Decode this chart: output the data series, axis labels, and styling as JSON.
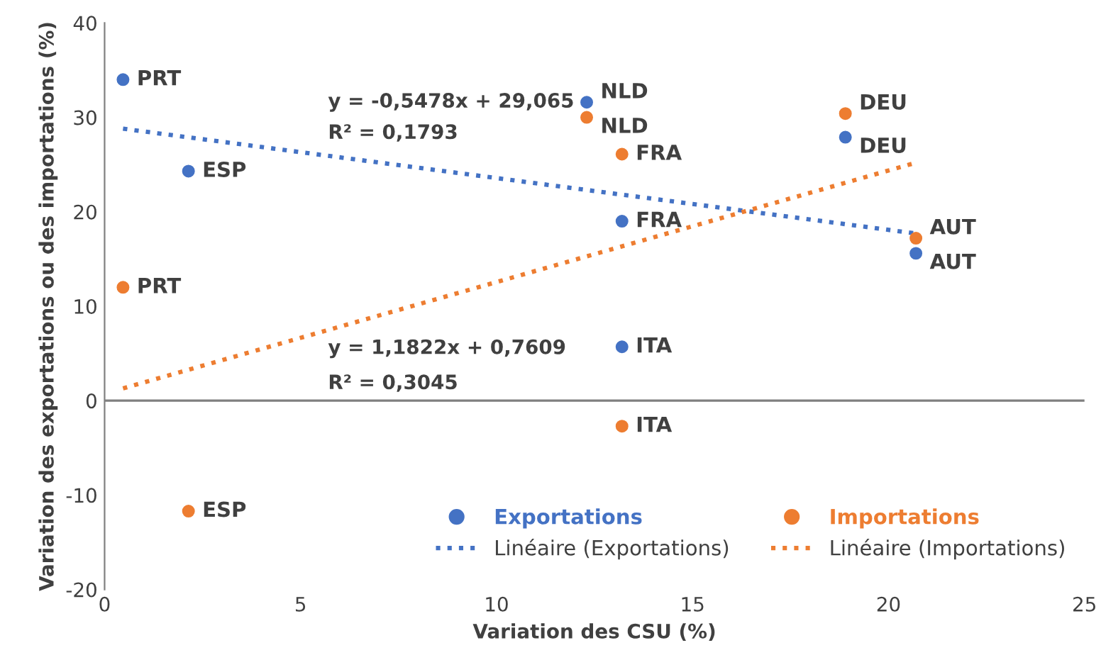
{
  "chart_data": {
    "type": "scatter",
    "xlabel": "Variation des CSU (%)",
    "ylabel": "Variation des exportations ou des importations (%)",
    "xlim": [
      0,
      25
    ],
    "xticks": [
      0,
      5,
      10,
      15,
      20,
      25
    ],
    "ylim": [
      -20,
      40
    ],
    "yticks": [
      -20,
      -10,
      0,
      10,
      20,
      30,
      40
    ],
    "grid": false,
    "legend": "bottom right",
    "marker": "circle",
    "ref_lines": [
      {
        "axis": "y",
        "value": 0,
        "color": "#7f7f7f"
      }
    ],
    "series": [
      {
        "name": "Exportations",
        "color": "#4472c4",
        "x": [
          0.47,
          2.14,
          12.3,
          18.9,
          13.2,
          13.2,
          20.7
        ],
        "values": [
          34.0,
          24.3,
          31.6,
          27.9,
          19.0,
          5.7,
          15.6
        ]
      },
      {
        "name": "Importations",
        "color": "#ed7d31",
        "x": [
          0.47,
          2.14,
          12.3,
          18.9,
          13.2,
          13.2,
          20.7
        ],
        "values": [
          12.0,
          -11.7,
          30.0,
          30.4,
          26.1,
          -2.7,
          17.2
        ]
      },
      {
        "name": "Linéaire (Exportations)",
        "type": "line",
        "line_style": "dotted",
        "marker": "none",
        "color": "#4472c4",
        "x": [
          0.47,
          20.7
        ],
        "values": [
          28.8,
          17.7
        ]
      },
      {
        "name": "Linéaire (Importations)",
        "type": "line",
        "line_style": "dotted",
        "marker": "none",
        "color": "#ed7d31",
        "x": [
          0.47,
          20.7
        ],
        "values": [
          1.3,
          25.2
        ]
      }
    ],
    "annotations": [
      {
        "text": "PRT",
        "x": 0.47,
        "y": 34.0
      },
      {
        "text": "ESP",
        "x": 2.14,
        "y": 24.3
      },
      {
        "text": "NLD",
        "x": 12.3,
        "y": 31.6
      },
      {
        "text": "DEU",
        "x": 18.9,
        "y": 27.9
      },
      {
        "text": "FRA",
        "x": 13.2,
        "y": 19.0
      },
      {
        "text": "ITA",
        "x": 13.2,
        "y": 5.7
      },
      {
        "text": "AUT",
        "x": 20.7,
        "y": 15.6
      },
      {
        "text": "PRT",
        "x": 0.47,
        "y": 12.0
      },
      {
        "text": "ESP",
        "x": 2.14,
        "y": -11.7
      },
      {
        "text": "NLD",
        "x": 12.3,
        "y": 30.0
      },
      {
        "text": "DEU",
        "x": 18.9,
        "y": 30.4
      },
      {
        "text": "FRA",
        "x": 13.2,
        "y": 26.1
      },
      {
        "text": "ITA",
        "x": 13.2,
        "y": -2.7
      },
      {
        "text": "AUT",
        "x": 20.7,
        "y": 17.2
      },
      "y = -0,5478x + 29,065",
      "R² = 0,1793",
      "y = 1,1822x + 0,7609",
      "R² = 0,3045"
    ]
  }
}
